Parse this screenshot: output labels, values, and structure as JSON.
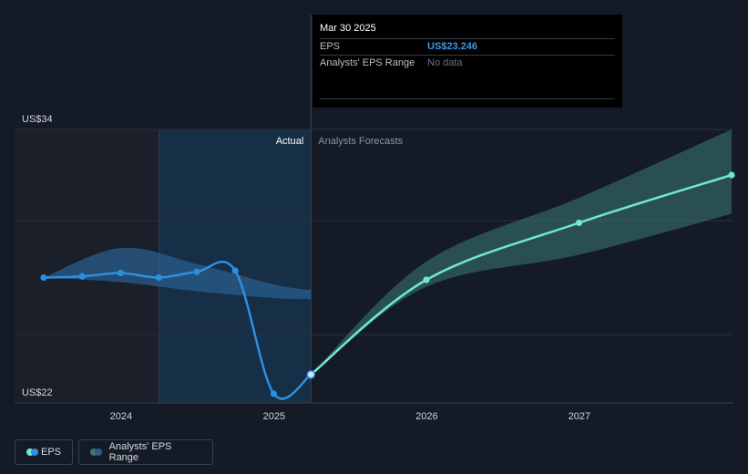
{
  "chart_data": {
    "type": "line",
    "ylabels": {
      "top": "US$34",
      "bottom": "US$22"
    },
    "ylim": [
      22,
      34
    ],
    "xlim": [
      "2023-06-15",
      "2028-01-01"
    ],
    "x_ticks": [
      {
        "label": "2024",
        "date": "2024-01-01"
      },
      {
        "label": "2025",
        "date": "2025-01-01"
      },
      {
        "label": "2026",
        "date": "2026-01-01"
      },
      {
        "label": "2027",
        "date": "2027-01-01"
      }
    ],
    "regions": {
      "actual_label": "Actual",
      "forecast_label": "Analysts Forecasts",
      "highlight_start": "2024-04-01",
      "divider": "2025-03-30"
    },
    "series": [
      {
        "name": "EPS",
        "color": "#2e8fe0",
        "points": [
          {
            "x": "2023-06-30",
            "y": 27.5
          },
          {
            "x": "2023-09-30",
            "y": 27.55
          },
          {
            "x": "2023-12-31",
            "y": 27.7
          },
          {
            "x": "2024-03-31",
            "y": 27.5
          },
          {
            "x": "2024-06-30",
            "y": 27.75
          },
          {
            "x": "2024-09-30",
            "y": 27.8
          },
          {
            "x": "2024-12-31",
            "y": 22.4
          },
          {
            "x": "2025-03-30",
            "y": 23.246
          }
        ]
      },
      {
        "name": "EPS Forecast",
        "color": "#6ee8d3",
        "points": [
          {
            "x": "2025-03-30",
            "y": 23.246
          },
          {
            "x": "2025-12-31",
            "y": 27.4
          },
          {
            "x": "2026-12-31",
            "y": 29.9
          },
          {
            "x": "2027-12-31",
            "y": 32.0
          }
        ]
      }
    ],
    "range_bands": [
      {
        "name": "Analysts' EPS Range (past)",
        "color": "#2a5d8c",
        "points": [
          {
            "x": "2023-06-30",
            "low": 27.5,
            "high": 27.5
          },
          {
            "x": "2023-12-31",
            "low": 27.3,
            "high": 28.8
          },
          {
            "x": "2024-06-30",
            "low": 26.9,
            "high": 28.1
          },
          {
            "x": "2024-12-31",
            "low": 26.6,
            "high": 27.2
          },
          {
            "x": "2025-03-30",
            "low": 26.55,
            "high": 26.95
          }
        ]
      },
      {
        "name": "Analysts' EPS Range (forecast)",
        "color": "#3d7a72",
        "points": [
          {
            "x": "2025-03-30",
            "low": 23.246,
            "high": 23.246
          },
          {
            "x": "2025-12-31",
            "low": 27.1,
            "high": 28.2
          },
          {
            "x": "2026-12-31",
            "low": 28.5,
            "high": 31.0
          },
          {
            "x": "2027-12-31",
            "low": 30.3,
            "high": 34.0
          }
        ]
      }
    ],
    "grid": true,
    "tooltip": {
      "date": "Mar 30 2025",
      "rows": [
        {
          "label": "EPS",
          "value": "US$23.246"
        },
        {
          "label": "Analysts' EPS Range",
          "value": "No data"
        }
      ]
    },
    "legend": [
      {
        "label": "EPS",
        "colors": [
          "#6ee8d3",
          "#2e8fe0"
        ]
      },
      {
        "label": "Analysts' EPS Range",
        "colors": [
          "#3d7a72",
          "#2a5d8c"
        ]
      }
    ]
  }
}
